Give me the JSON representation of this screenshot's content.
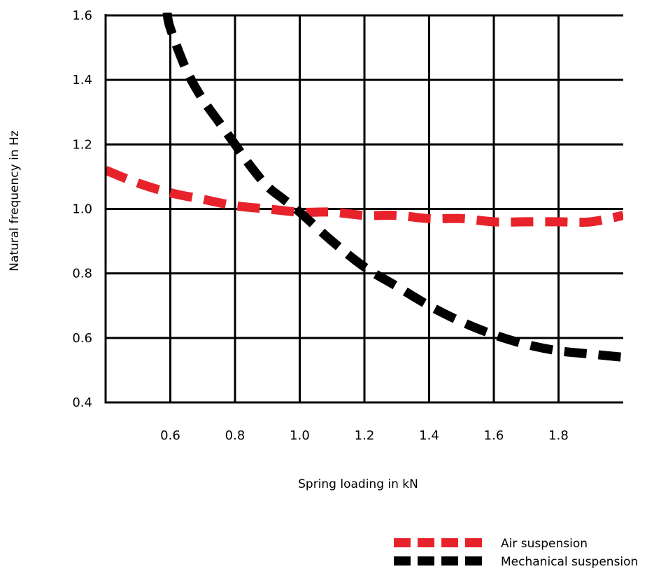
{
  "chart_data": {
    "type": "line",
    "xlabel": "Spring loading in kN",
    "ylabel": "Natural frequency in Hz",
    "xlim": [
      0.4,
      2.0
    ],
    "ylim": [
      0.4,
      1.6
    ],
    "x_ticks": [
      0.6,
      0.8,
      1.0,
      1.2,
      1.4,
      1.6,
      1.8
    ],
    "x_tick_labels": [
      "0.6",
      "0.8",
      "1.0",
      "1.2",
      "1.4",
      "1.6",
      "1.8"
    ],
    "y_ticks": [
      0.4,
      0.6,
      0.8,
      1.0,
      1.2,
      1.4,
      1.6
    ],
    "y_tick_labels": [
      "0.4",
      "0.6",
      "0.8",
      "1.0",
      "1.2",
      "1.4",
      "1.6"
    ],
    "grid": true,
    "legend_position": "bottom-right",
    "series": [
      {
        "name": "Air suspension",
        "color": "#e8222a",
        "x": [
          0.4,
          0.5,
          0.6,
          0.7,
          0.8,
          0.9,
          1.0,
          1.1,
          1.2,
          1.3,
          1.4,
          1.5,
          1.6,
          1.7,
          1.8,
          1.9,
          2.0
        ],
        "y": [
          1.12,
          1.08,
          1.05,
          1.03,
          1.01,
          1.0,
          0.99,
          0.99,
          0.98,
          0.98,
          0.97,
          0.97,
          0.96,
          0.96,
          0.96,
          0.96,
          0.98
        ]
      },
      {
        "name": "Mechanical suspension",
        "color": "#000000",
        "x": [
          0.59,
          0.6,
          0.65,
          0.7,
          0.75,
          0.8,
          0.85,
          0.9,
          0.95,
          1.0,
          1.1,
          1.2,
          1.3,
          1.4,
          1.5,
          1.6,
          1.7,
          1.8,
          1.9,
          2.0
        ],
        "y": [
          1.61,
          1.56,
          1.43,
          1.34,
          1.27,
          1.2,
          1.13,
          1.07,
          1.03,
          0.99,
          0.9,
          0.82,
          0.76,
          0.7,
          0.65,
          0.61,
          0.58,
          0.56,
          0.55,
          0.54
        ]
      }
    ]
  }
}
